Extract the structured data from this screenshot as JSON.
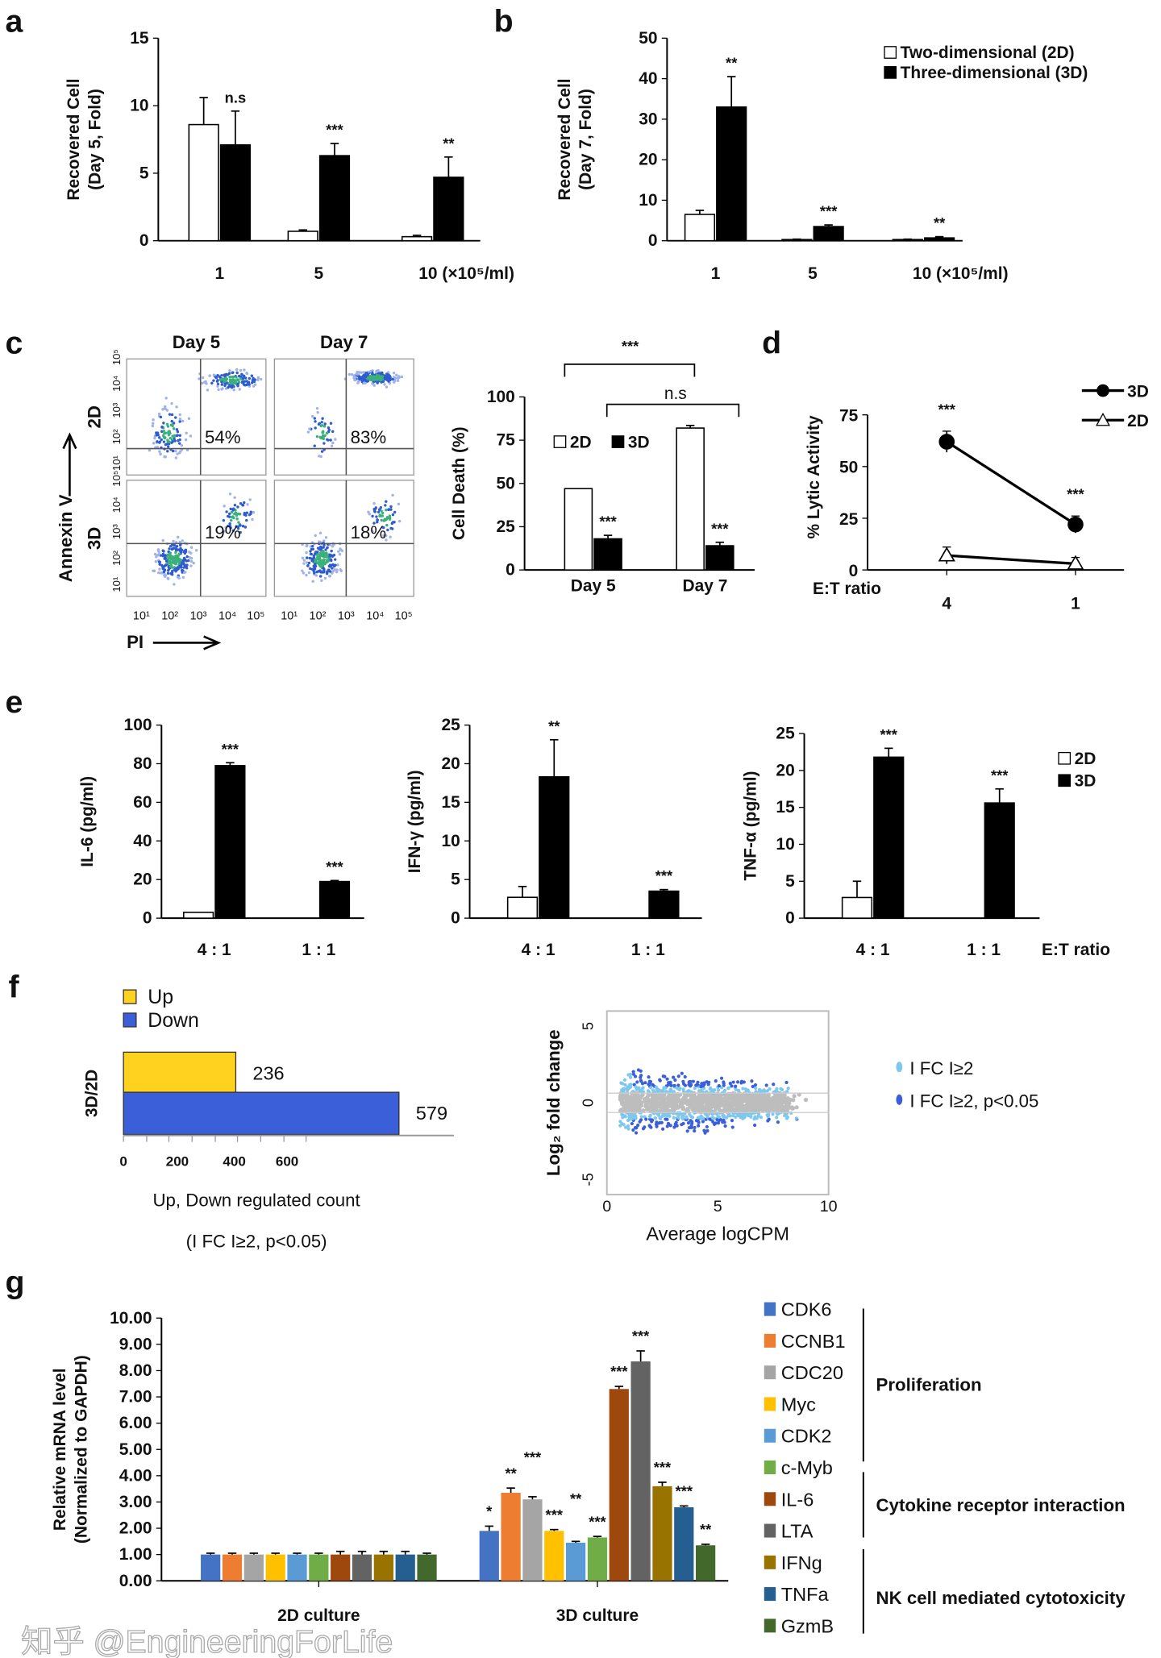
{
  "panel_labels": [
    "a",
    "b",
    "c",
    "d",
    "e",
    "f",
    "g"
  ],
  "watermark": "知乎 @EngineeringForLife",
  "chart_data": [
    {
      "id": "a",
      "type": "bar",
      "ylabel": "Recovered Cell",
      "ylabel2": "(Day 5, Fold)",
      "ylim": [
        0,
        15
      ],
      "yticks": [
        0,
        5,
        10,
        15
      ],
      "categories": [
        "1",
        "5",
        "10 (×10⁵/ml)"
      ],
      "series": [
        {
          "name": "Two-dimensional (2D)",
          "color": "#ffffff",
          "values": [
            8.6,
            0.7,
            0.3
          ],
          "errors": [
            2.0,
            0.1,
            0.1
          ],
          "stars": [
            "",
            "",
            ""
          ]
        },
        {
          "name": "Three-dimensional (3D)",
          "color": "#000000",
          "values": [
            7.1,
            6.3,
            4.7
          ],
          "errors": [
            2.5,
            0.9,
            1.5
          ],
          "stars": [
            "n.s",
            "***",
            "**"
          ]
        }
      ]
    },
    {
      "id": "b",
      "type": "bar",
      "ylabel": "Recovered Cell",
      "ylabel2": "(Day 7, Fold)",
      "ylim": [
        0,
        50
      ],
      "yticks": [
        0,
        10,
        20,
        30,
        40,
        50
      ],
      "categories": [
        "1",
        "5",
        "10 (×10⁵/ml)"
      ],
      "legend": "top-right",
      "series": [
        {
          "name": "Two-dimensional  (2D)",
          "color": "#ffffff",
          "values": [
            6.5,
            0.3,
            0.3
          ],
          "errors": [
            1.0,
            0.1,
            0.1
          ],
          "stars": [
            "",
            "",
            ""
          ]
        },
        {
          "name": "Three-dimensional  (3D)",
          "color": "#000000",
          "values": [
            33,
            3.5,
            0.7
          ],
          "errors": [
            7.5,
            0.4,
            0.3
          ],
          "stars": [
            "**",
            "***",
            "**"
          ]
        }
      ]
    },
    {
      "id": "c",
      "type": "bar",
      "ylabel": "Cell Death (%)",
      "ylim": [
        0,
        100
      ],
      "yticks": [
        0,
        25,
        50,
        75,
        100
      ],
      "categories": [
        "Day 5",
        "Day 7"
      ],
      "legend": "top-left",
      "series": [
        {
          "name": "2D",
          "color": "#ffffff",
          "values": [
            47,
            82
          ],
          "errors": [
            0,
            1.5
          ],
          "stars": [
            "",
            ""
          ]
        },
        {
          "name": "3D",
          "color": "#000000",
          "values": [
            18,
            14
          ],
          "errors": [
            2,
            2
          ],
          "stars": [
            "***",
            "***"
          ]
        }
      ],
      "brackets": [
        {
          "label": "***"
        },
        {
          "label": "n.s"
        }
      ]
    },
    {
      "id": "d",
      "type": "line",
      "ylabel": "% Lytic Activity",
      "xlabel": "E:T ratio",
      "ylim": [
        0,
        75
      ],
      "yticks": [
        0,
        25,
        50,
        75
      ],
      "categories": [
        "4",
        "1"
      ],
      "legend": "top-right",
      "series": [
        {
          "name": "3D",
          "marker": "filled-circle",
          "values": [
            62,
            22
          ],
          "errors": [
            5,
            4
          ],
          "stars": [
            "***",
            "***"
          ]
        },
        {
          "name": "2D",
          "marker": "open-triangle",
          "values": [
            7,
            3
          ],
          "errors": [
            4,
            3
          ]
        }
      ]
    },
    {
      "id": "e1",
      "type": "bar",
      "ylabel": "IL-6 (pg/ml)",
      "ylim": [
        0,
        100
      ],
      "yticks": [
        0,
        20,
        40,
        60,
        80,
        100
      ],
      "categories": [
        "4 : 1",
        "1 : 1"
      ],
      "series": [
        {
          "name": "2D",
          "color": "#ffffff",
          "values": [
            3,
            0
          ],
          "errors": [
            0,
            0
          ],
          "stars": [
            "",
            ""
          ]
        },
        {
          "name": "3D",
          "color": "#000000",
          "values": [
            79,
            19
          ],
          "errors": [
            1.5,
            0.5
          ],
          "stars": [
            "***",
            "***"
          ]
        }
      ]
    },
    {
      "id": "e2",
      "type": "bar",
      "ylabel": "IFN-γ (pg/ml)",
      "ylim": [
        0,
        25
      ],
      "yticks": [
        0,
        5,
        10,
        15,
        20,
        25
      ],
      "categories": [
        "4 : 1",
        "1 : 1"
      ],
      "series": [
        {
          "name": "2D",
          "color": "#ffffff",
          "values": [
            2.7,
            0
          ],
          "errors": [
            1.4,
            0
          ],
          "stars": [
            "",
            ""
          ]
        },
        {
          "name": "3D",
          "color": "#000000",
          "values": [
            18.3,
            3.5
          ],
          "errors": [
            4.8,
            0.2
          ],
          "stars": [
            "**",
            "***"
          ]
        }
      ]
    },
    {
      "id": "e3",
      "type": "bar",
      "ylabel": "TNF-α (pg/ml)",
      "xlabel": "E:T ratio",
      "ylim": [
        0,
        25
      ],
      "yticks": [
        0,
        5,
        10,
        15,
        20,
        25
      ],
      "categories": [
        "4 : 1",
        "1 : 1"
      ],
      "legend": "top-right",
      "series": [
        {
          "name": "2D",
          "color": "#ffffff",
          "values": [
            2.8,
            0
          ],
          "errors": [
            2.2,
            0
          ],
          "stars": [
            "",
            ""
          ]
        },
        {
          "name": "3D",
          "color": "#000000",
          "values": [
            21.8,
            15.6
          ],
          "errors": [
            1.2,
            1.9
          ],
          "stars": [
            "***",
            "***"
          ]
        }
      ]
    },
    {
      "id": "f1",
      "type": "bar",
      "orientation": "horizontal",
      "ylabel": "3D/2D",
      "xlabel": "Up, Down regulated count",
      "xlabel2": "(I FC I≥2, p<0.05)",
      "xticks": [
        0,
        200,
        400,
        600
      ],
      "legend": "top-left",
      "series": [
        {
          "name": "Up",
          "color": "#ffd21f",
          "value": 236
        },
        {
          "name": "Down",
          "color": "#3a5fd9",
          "value": 579
        }
      ]
    },
    {
      "id": "f2",
      "type": "scatter",
      "title": "",
      "xlabel": "Average logCPM",
      "ylabel": "Log₂ fold change",
      "xlim": [
        0,
        10
      ],
      "ylim": [
        -5,
        5
      ],
      "xticks": [
        0,
        5,
        10
      ],
      "yticks": [
        5,
        0,
        -5
      ],
      "legend": "right",
      "series": [
        {
          "name": "I FC I≥2",
          "color": "#7ec8f0"
        },
        {
          "name": "I FC I≥2, p<0.05",
          "color": "#3a5fd9"
        },
        {
          "color": "#bdbdbd"
        }
      ]
    },
    {
      "id": "g",
      "type": "bar",
      "ylabel": "Relative mRNA level",
      "ylabel2": "(Normalized to GAPDH)",
      "ylim": [
        0,
        10
      ],
      "yticks": [
        "0.00",
        "1.00",
        "2.00",
        "3.00",
        "4.00",
        "5.00",
        "6.00",
        "7.00",
        "8.00",
        "9.00",
        "10.00"
      ],
      "categories": [
        "2D culture",
        "3D culture"
      ],
      "legend": "right",
      "series": [
        {
          "name": "CDK6",
          "color": "#4472c4",
          "values": [
            1,
            1.9
          ],
          "errors": [
            0.05,
            0.18
          ],
          "stars": [
            "",
            "*"
          ]
        },
        {
          "name": "CCNB1",
          "color": "#ed7d31",
          "values": [
            1,
            3.35
          ],
          "errors": [
            0.05,
            0.18
          ],
          "stars": [
            "",
            "**"
          ]
        },
        {
          "name": "CDC20",
          "color": "#a5a5a5",
          "values": [
            1,
            3.1
          ],
          "errors": [
            0.05,
            0.1
          ],
          "stars": [
            "",
            "***"
          ]
        },
        {
          "name": "Myc",
          "color": "#ffc000",
          "values": [
            1,
            1.9
          ],
          "errors": [
            0.05,
            0.05
          ],
          "stars": [
            "",
            "***"
          ]
        },
        {
          "name": "CDK2",
          "color": "#5b9bd5",
          "values": [
            1,
            1.45
          ],
          "errors": [
            0.05,
            0.05
          ],
          "stars": [
            "",
            "**"
          ]
        },
        {
          "name": "c-Myb",
          "color": "#70ad47",
          "values": [
            1,
            1.65
          ],
          "errors": [
            0.05,
            0.04
          ],
          "stars": [
            "",
            "***"
          ]
        },
        {
          "name": "IL-6",
          "color": "#9e480e",
          "values": [
            1,
            7.3
          ],
          "errors": [
            0.12,
            0.1
          ],
          "stars": [
            "",
            "***"
          ]
        },
        {
          "name": "LTA",
          "color": "#636363",
          "values": [
            1,
            8.35
          ],
          "errors": [
            0.12,
            0.4
          ],
          "stars": [
            "",
            "***"
          ]
        },
        {
          "name": "IFNg",
          "color": "#997300",
          "values": [
            1,
            3.6
          ],
          "errors": [
            0.12,
            0.15
          ],
          "stars": [
            "",
            "***"
          ]
        },
        {
          "name": "TNFa",
          "color": "#255e91",
          "values": [
            1,
            2.8
          ],
          "errors": [
            0.12,
            0.05
          ],
          "stars": [
            "",
            "***"
          ]
        },
        {
          "name": "GzmB",
          "color": "#43682b",
          "values": [
            1,
            1.35
          ],
          "errors": [
            0.05,
            0.04
          ],
          "stars": [
            "",
            "**"
          ]
        }
      ],
      "groups": [
        "Proliferation",
        "Cytokine receptor interaction",
        "NK cell mediated cytotoxicity"
      ]
    }
  ],
  "flow": {
    "columns": [
      "Day 5",
      "Day 7"
    ],
    "rows": [
      "2D",
      "3D"
    ],
    "percentages": [
      "54%",
      "83%",
      "19%",
      "18%"
    ],
    "ylabel": "Annexin V",
    "xlabel": "PI",
    "ticks": [
      "10¹",
      "10²",
      "10³",
      "10⁴",
      "10⁵"
    ]
  }
}
